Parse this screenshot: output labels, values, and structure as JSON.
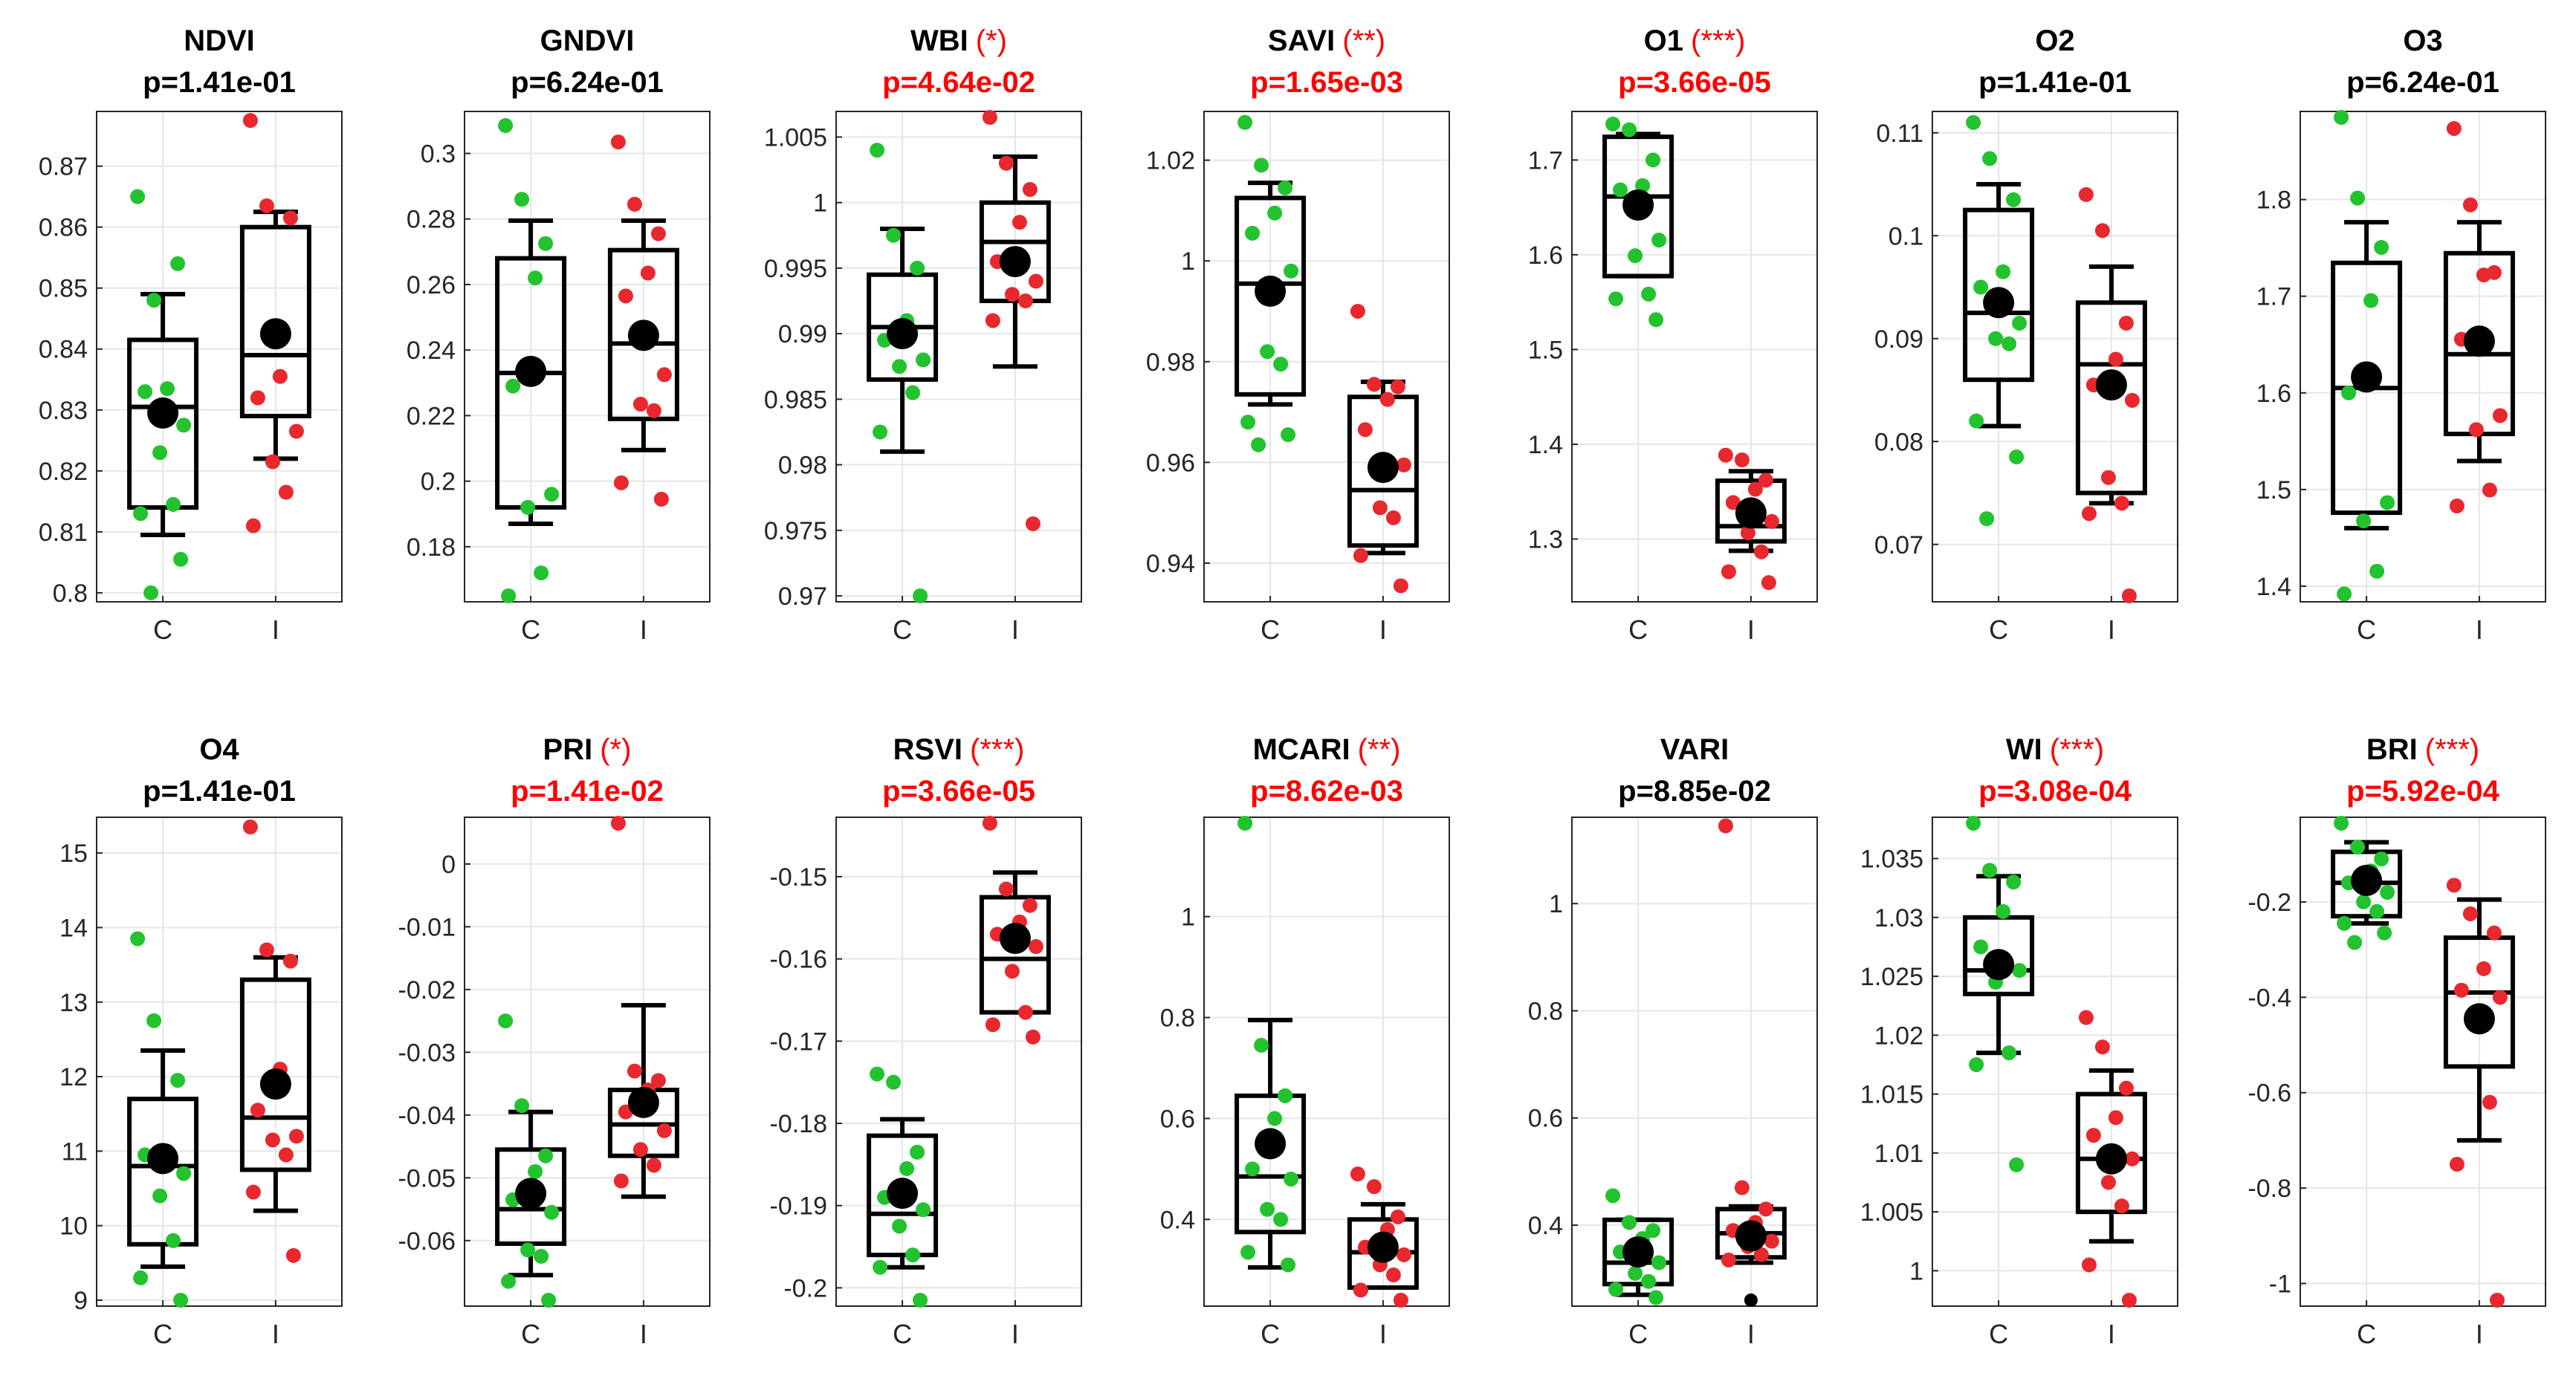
{
  "figure": {
    "categories": [
      "C",
      "I"
    ]
  },
  "colors": {
    "control": "#22c32e",
    "treatment": "#e8282e",
    "significant": "#ff0000",
    "normal": "#000000",
    "mean": "#000000",
    "box": "#000000",
    "grid": "#e6e6e6"
  },
  "chart_data": [
    {
      "type": "box",
      "title": "NDVI",
      "stars": "",
      "pvalue": "p=1.41e-01",
      "significant": false,
      "yticks": [
        0.8,
        0.81,
        0.82,
        0.83,
        0.84,
        0.85,
        0.86,
        0.87
      ],
      "ytick_labels": [
        "0.8",
        "0.81",
        "0.82",
        "0.83",
        "0.84",
        "0.85",
        "0.86",
        "0.87"
      ],
      "ylim": [
        0.7995,
        0.878
      ],
      "boxes": [
        {
          "category": "C",
          "whisker_low": 0.8095,
          "q1": 0.814,
          "median": 0.8305,
          "q3": 0.8415,
          "whisker_high": 0.849,
          "mean": 0.8295,
          "points": [
            0.865,
            0.848,
            0.854,
            0.8335,
            0.833,
            0.8275,
            0.823,
            0.8145,
            0.813,
            0.8055,
            0.8
          ]
        },
        {
          "category": "I",
          "whisker_low": 0.822,
          "q1": 0.829,
          "median": 0.839,
          "q3": 0.86,
          "whisker_high": 0.8625,
          "mean": 0.8425,
          "points": [
            0.8775,
            0.8635,
            0.8615,
            0.8355,
            0.832,
            0.8265,
            0.8215,
            0.8165,
            0.811
          ]
        }
      ]
    },
    {
      "type": "box",
      "title": "GNDVI",
      "stars": "",
      "pvalue": "p=6.24e-01",
      "significant": false,
      "yticks": [
        0.18,
        0.2,
        0.22,
        0.24,
        0.26,
        0.28,
        0.3
      ],
      "ytick_labels": [
        "0.18",
        "0.2",
        "0.22",
        "0.24",
        "0.26",
        "0.28",
        "0.3"
      ],
      "ylim": [
        0.165,
        0.311
      ],
      "boxes": [
        {
          "category": "C",
          "whisker_low": 0.187,
          "q1": 0.192,
          "median": 0.233,
          "q3": 0.268,
          "whisker_high": 0.2795,
          "mean": 0.2335,
          "points": [
            0.3085,
            0.286,
            0.2725,
            0.262,
            0.229,
            0.196,
            0.192,
            0.172,
            0.165
          ]
        },
        {
          "category": "I",
          "whisker_low": 0.2095,
          "q1": 0.219,
          "median": 0.242,
          "q3": 0.2705,
          "whisker_high": 0.2795,
          "mean": 0.2445,
          "points": [
            0.3035,
            0.2845,
            0.2755,
            0.2635,
            0.2565,
            0.2325,
            0.2235,
            0.2215,
            0.1995,
            0.1945
          ]
        }
      ]
    },
    {
      "type": "box",
      "title": "WBI",
      "stars": "(*)",
      "pvalue": "p=4.64e-02",
      "significant": true,
      "yticks": [
        0.97,
        0.975,
        0.98,
        0.985,
        0.99,
        0.995,
        1,
        1.005
      ],
      "ytick_labels": [
        "0.97",
        "0.975",
        "0.98",
        "0.985",
        "0.99",
        "0.995",
        "1",
        "1.005"
      ],
      "ylim": [
        0.97,
        1.0065
      ],
      "boxes": [
        {
          "category": "C",
          "whisker_low": 0.981,
          "q1": 0.9865,
          "median": 0.9905,
          "q3": 0.9945,
          "whisker_high": 0.998,
          "mean": 0.99,
          "points": [
            1.004,
            0.9975,
            0.995,
            0.991,
            0.9895,
            0.988,
            0.9875,
            0.9855,
            0.9825,
            0.97
          ]
        },
        {
          "category": "I",
          "whisker_low": 0.9875,
          "q1": 0.9925,
          "median": 0.997,
          "q3": 1.0,
          "whisker_high": 1.0035,
          "mean": 0.9955,
          "points": [
            1.0065,
            1.003,
            1.001,
            0.9985,
            0.9955,
            0.994,
            0.993,
            0.9925,
            0.991,
            0.9755
          ]
        }
      ]
    },
    {
      "type": "box",
      "title": "SAVI",
      "stars": "(**)",
      "pvalue": "p=1.65e-03",
      "significant": true,
      "yticks": [
        0.94,
        0.96,
        0.98,
        1,
        1.02
      ],
      "ytick_labels": [
        "0.94",
        "0.96",
        "0.98",
        "1",
        "1.02"
      ],
      "ylim": [
        0.9335,
        1.0285
      ],
      "boxes": [
        {
          "category": "C",
          "whisker_low": 0.9715,
          "q1": 0.9735,
          "median": 0.9955,
          "q3": 1.0125,
          "whisker_high": 1.0155,
          "mean": 0.994,
          "points": [
            1.0275,
            1.019,
            1.0145,
            1.0095,
            1.0055,
            0.998,
            0.982,
            0.9795,
            0.968,
            0.9655,
            0.9635
          ]
        },
        {
          "category": "I",
          "whisker_low": 0.942,
          "q1": 0.9435,
          "median": 0.9545,
          "q3": 0.973,
          "whisker_high": 0.976,
          "mean": 0.959,
          "points": [
            0.99,
            0.9755,
            0.975,
            0.9725,
            0.9665,
            0.9595,
            0.951,
            0.949,
            0.9415,
            0.9355
          ]
        }
      ]
    },
    {
      "type": "box",
      "title": "O1",
      "stars": "(***)",
      "pvalue": "p=3.66e-05",
      "significant": true,
      "yticks": [
        1.3,
        1.4,
        1.5,
        1.6,
        1.7
      ],
      "ytick_labels": [
        "1.3",
        "1.4",
        "1.5",
        "1.6",
        "1.7"
      ],
      "ylim": [
        1.24,
        1.745
      ],
      "boxes": [
        {
          "category": "C",
          "whisker_low": 1.5775,
          "q1": 1.5775,
          "median": 1.6615,
          "q3": 1.7245,
          "whisker_high": 1.7275,
          "mean": 1.6525,
          "points": [
            1.738,
            1.732,
            1.7,
            1.673,
            1.6685,
            1.6155,
            1.599,
            1.5585,
            1.5535,
            1.5315
          ]
        },
        {
          "category": "I",
          "whisker_low": 1.2875,
          "q1": 1.2975,
          "median": 1.3135,
          "q3": 1.3615,
          "whisker_high": 1.3715,
          "mean": 1.3275,
          "points": [
            1.3885,
            1.3835,
            1.362,
            1.3525,
            1.3385,
            1.3185,
            1.3065,
            1.2865,
            1.2655,
            1.254
          ]
        }
      ]
    },
    {
      "type": "box",
      "title": "O2",
      "stars": "",
      "pvalue": "p=1.41e-01",
      "significant": false,
      "yticks": [
        0.07,
        0.08,
        0.09,
        0.1,
        0.11
      ],
      "ytick_labels": [
        "0.07",
        "0.08",
        "0.09",
        "0.1",
        "0.11"
      ],
      "ylim": [
        0.065,
        0.1115
      ],
      "boxes": [
        {
          "category": "C",
          "whisker_low": 0.0815,
          "q1": 0.086,
          "median": 0.0925,
          "q3": 0.1025,
          "whisker_high": 0.105,
          "mean": 0.0935,
          "points": [
            0.111,
            0.1075,
            0.1035,
            0.0965,
            0.095,
            0.0915,
            0.09,
            0.0895,
            0.082,
            0.0785,
            0.0725
          ]
        },
        {
          "category": "I",
          "whisker_low": 0.074,
          "q1": 0.075,
          "median": 0.0875,
          "q3": 0.0935,
          "whisker_high": 0.097,
          "mean": 0.0855,
          "points": [
            0.104,
            0.1005,
            0.0915,
            0.088,
            0.0855,
            0.084,
            0.0765,
            0.074,
            0.073,
            0.065
          ]
        }
      ]
    },
    {
      "type": "box",
      "title": "O3",
      "stars": "",
      "pvalue": "p=6.24e-01",
      "significant": false,
      "yticks": [
        1.4,
        1.5,
        1.6,
        1.7,
        1.8
      ],
      "ytick_labels": [
        "1.4",
        "1.5",
        "1.6",
        "1.7",
        "1.8"
      ],
      "ylim": [
        1.39,
        1.885
      ],
      "boxes": [
        {
          "category": "C",
          "whisker_low": 1.46,
          "q1": 1.476,
          "median": 1.605,
          "q3": 1.7345,
          "whisker_high": 1.7765,
          "mean": 1.6165,
          "points": [
            1.885,
            1.8015,
            1.7505,
            1.6955,
            1.6,
            1.4865,
            1.4675,
            1.4155,
            1.392
          ]
        },
        {
          "category": "I",
          "whisker_low": 1.5295,
          "q1": 1.5575,
          "median": 1.64,
          "q3": 1.7445,
          "whisker_high": 1.7765,
          "mean": 1.6535,
          "points": [
            1.8735,
            1.7945,
            1.7245,
            1.722,
            1.6555,
            1.5765,
            1.562,
            1.4995,
            1.483
          ]
        }
      ]
    },
    {
      "type": "box",
      "title": "O4",
      "stars": "",
      "pvalue": "p=1.41e-01",
      "significant": false,
      "yticks": [
        9,
        10,
        11,
        12,
        13,
        14,
        15
      ],
      "ytick_labels": [
        "9",
        "10",
        "11",
        "12",
        "13",
        "14",
        "15"
      ],
      "ylim": [
        9.0,
        15.4
      ],
      "boxes": [
        {
          "category": "C",
          "whisker_low": 9.45,
          "q1": 9.75,
          "median": 10.8,
          "q3": 11.7,
          "whisker_high": 12.35,
          "mean": 10.9,
          "points": [
            13.85,
            12.75,
            11.95,
            11.0,
            10.95,
            10.7,
            10.4,
            9.8,
            9.3,
            9.0
          ]
        },
        {
          "category": "I",
          "whisker_low": 10.2,
          "q1": 10.75,
          "median": 11.45,
          "q3": 13.3,
          "whisker_high": 13.6,
          "mean": 11.9,
          "points": [
            15.35,
            13.7,
            13.55,
            12.1,
            11.55,
            11.2,
            11.15,
            10.95,
            10.45,
            9.6
          ]
        }
      ]
    },
    {
      "type": "box",
      "title": "PRI",
      "stars": "(*)",
      "pvalue": "p=1.41e-02",
      "significant": true,
      "yticks": [
        -0.06,
        -0.05,
        -0.04,
        -0.03,
        -0.02,
        -0.01,
        0
      ],
      "ytick_labels": [
        "-0.06",
        "-0.05",
        "-0.04",
        "-0.03",
        "-0.02",
        "-0.01",
        "0"
      ],
      "ylim": [
        -0.0695,
        0.0065
      ],
      "boxes": [
        {
          "category": "C",
          "whisker_low": -0.0655,
          "q1": -0.0605,
          "median": -0.055,
          "q3": -0.0455,
          "whisker_high": -0.0395,
          "mean": -0.0525,
          "points": [
            -0.025,
            -0.0385,
            -0.0465,
            -0.049,
            -0.0535,
            -0.0555,
            -0.0615,
            -0.0625,
            -0.0665,
            -0.0695
          ]
        },
        {
          "category": "I",
          "whisker_low": -0.053,
          "q1": -0.0465,
          "median": -0.0415,
          "q3": -0.036,
          "whisker_high": -0.0225,
          "mean": -0.038,
          "points": [
            0.0065,
            -0.033,
            -0.0345,
            -0.036,
            -0.0395,
            -0.0425,
            -0.0455,
            -0.048,
            -0.0505
          ]
        }
      ]
    },
    {
      "type": "box",
      "title": "RSVI",
      "stars": "(***)",
      "pvalue": "p=3.66e-05",
      "significant": true,
      "yticks": [
        -0.2,
        -0.19,
        -0.18,
        -0.17,
        -0.16,
        -0.15
      ],
      "ytick_labels": [
        "-0.2",
        "-0.19",
        "-0.18",
        "-0.17",
        "-0.16",
        "-0.15"
      ],
      "ylim": [
        -0.2015,
        -0.1435
      ],
      "boxes": [
        {
          "category": "C",
          "whisker_low": -0.1975,
          "q1": -0.196,
          "median": -0.191,
          "q3": -0.1815,
          "whisker_high": -0.1795,
          "mean": -0.1885,
          "points": [
            -0.174,
            -0.175,
            -0.1835,
            -0.1855,
            -0.189,
            -0.1905,
            -0.1925,
            -0.196,
            -0.1975,
            -0.2015
          ]
        },
        {
          "category": "I",
          "whisker_low": -0.1665,
          "q1": -0.1665,
          "median": -0.16,
          "q3": -0.1525,
          "whisker_high": -0.1495,
          "mean": -0.1575,
          "points": [
            -0.1435,
            -0.1515,
            -0.1535,
            -0.1555,
            -0.157,
            -0.1585,
            -0.1615,
            -0.1665,
            -0.168,
            -0.1695
          ]
        }
      ]
    },
    {
      "type": "box",
      "title": "MCARI",
      "stars": "(**)",
      "pvalue": "p=8.62e-03",
      "significant": true,
      "yticks": [
        0.4,
        0.6,
        0.8,
        1
      ],
      "ytick_labels": [
        "0.4",
        "0.6",
        "0.8",
        "1"
      ],
      "ylim": [
        0.24,
        1.185
      ],
      "boxes": [
        {
          "category": "C",
          "whisker_low": 0.305,
          "q1": 0.375,
          "median": 0.485,
          "q3": 0.645,
          "whisker_high": 0.795,
          "mean": 0.55,
          "points": [
            1.185,
            0.745,
            0.645,
            0.6,
            0.5,
            0.48,
            0.42,
            0.4,
            0.335,
            0.31
          ]
        },
        {
          "category": "I",
          "whisker_low": 0.265,
          "q1": 0.265,
          "median": 0.335,
          "q3": 0.4,
          "whisker_high": 0.43,
          "mean": 0.345,
          "points": [
            0.49,
            0.465,
            0.405,
            0.38,
            0.345,
            0.33,
            0.31,
            0.29,
            0.26,
            0.24
          ]
        }
      ]
    },
    {
      "type": "box",
      "title": "VARI",
      "stars": "",
      "pvalue": "p=8.85e-02",
      "significant": false,
      "yticks": [
        0.4,
        0.6,
        0.8,
        1
      ],
      "ytick_labels": [
        "0.4",
        "0.6",
        "0.8",
        "1"
      ],
      "ylim": [
        0.26,
        1.15
      ],
      "boxes": [
        {
          "category": "C",
          "whisker_low": 0.27,
          "q1": 0.29,
          "median": 0.33,
          "q3": 0.41,
          "whisker_high": 0.41,
          "mean": 0.35,
          "points": [
            0.455,
            0.405,
            0.39,
            0.375,
            0.35,
            0.33,
            0.31,
            0.295,
            0.28,
            0.265
          ]
        },
        {
          "category": "I",
          "whisker_low": 0.33,
          "q1": 0.34,
          "median": 0.385,
          "q3": 0.43,
          "whisker_high": 0.435,
          "mean": 0.38,
          "points": [
            1.145,
            0.47,
            0.43,
            0.405,
            0.39,
            0.37,
            0.36,
            0.345,
            0.335
          ],
          "outliers": [
            0.26
          ]
        }
      ]
    },
    {
      "type": "box",
      "title": "WI",
      "stars": "(***)",
      "pvalue": "p=3.08e-04",
      "significant": true,
      "yticks": [
        1,
        1.005,
        1.01,
        1.015,
        1.02,
        1.025,
        1.03,
        1.035
      ],
      "ytick_labels": [
        "1",
        "1.005",
        "1.01",
        "1.015",
        "1.02",
        "1.025",
        "1.03",
        "1.035"
      ],
      "ylim": [
        0.9975,
        1.038
      ],
      "boxes": [
        {
          "category": "C",
          "whisker_low": 1.0185,
          "q1": 1.0235,
          "median": 1.0255,
          "q3": 1.03,
          "whisker_high": 1.0335,
          "mean": 1.026,
          "points": [
            1.038,
            1.034,
            1.033,
            1.0305,
            1.0275,
            1.0255,
            1.0245,
            1.0185,
            1.0175,
            1.009
          ]
        },
        {
          "category": "I",
          "whisker_low": 1.0025,
          "q1": 1.005,
          "median": 1.0095,
          "q3": 1.015,
          "whisker_high": 1.017,
          "mean": 1.0095,
          "points": [
            1.0215,
            1.019,
            1.0155,
            1.013,
            1.0115,
            1.0095,
            1.0075,
            1.0055,
            1.0005,
            0.9975
          ]
        }
      ]
    },
    {
      "type": "box",
      "title": "BRI",
      "stars": "(***)",
      "pvalue": "p=5.92e-04",
      "significant": true,
      "yticks": [
        -1,
        -0.8,
        -0.6,
        -0.4,
        -0.2
      ],
      "ytick_labels": [
        "-1",
        "-0.8",
        "-0.6",
        "-0.4",
        "-0.2"
      ],
      "ylim": [
        -1.035,
        -0.035
      ],
      "boxes": [
        {
          "category": "C",
          "whisker_low": -0.245,
          "q1": -0.23,
          "median": -0.16,
          "q3": -0.095,
          "whisker_high": -0.075,
          "mean": -0.155,
          "points": [
            -0.035,
            -0.085,
            -0.11,
            -0.135,
            -0.16,
            -0.18,
            -0.2,
            -0.22,
            -0.245,
            -0.265,
            -0.285
          ]
        },
        {
          "category": "I",
          "whisker_low": -0.7,
          "q1": -0.545,
          "median": -0.39,
          "q3": -0.275,
          "whisker_high": -0.195,
          "mean": -0.445,
          "points": [
            -0.165,
            -0.225,
            -0.265,
            -0.34,
            -0.385,
            -0.4,
            -0.445,
            -0.62,
            -0.75,
            -1.035
          ]
        }
      ]
    }
  ]
}
